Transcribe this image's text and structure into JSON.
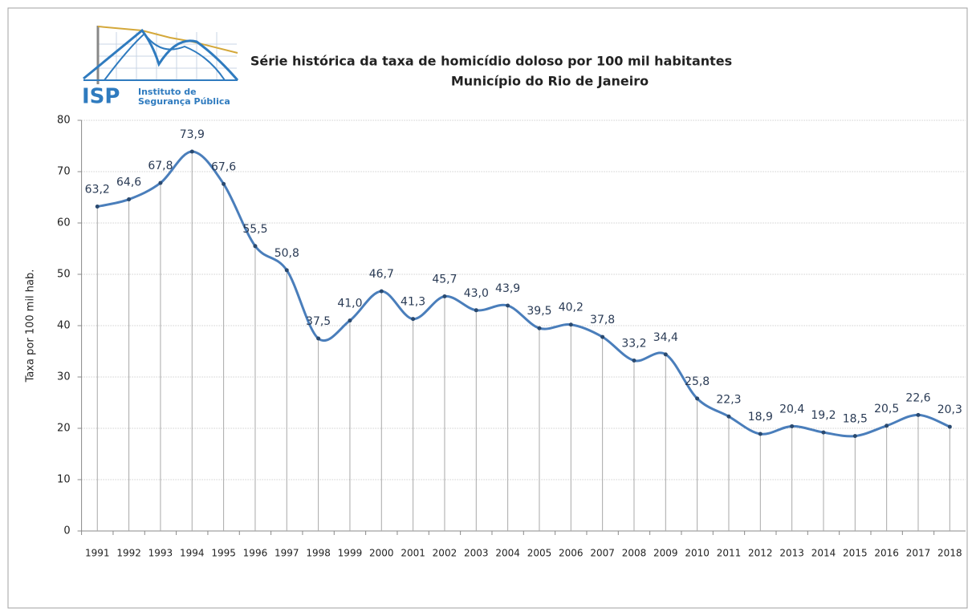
{
  "logo": {
    "acronym": "ISP",
    "line1": "Instituto de",
    "line2": "Segurança Pública"
  },
  "chart_data": {
    "type": "line",
    "title": "Série histórica da taxa de homicídio doloso por 100 mil habitantes",
    "subtitle": "Município do Rio de Janeiro",
    "y_label": "Taxa por 100 mil hab.",
    "categories": [
      "1991",
      "1992",
      "1993",
      "1994",
      "1995",
      "1996",
      "1997",
      "1998",
      "1999",
      "2000",
      "2001",
      "2002",
      "2003",
      "2004",
      "2005",
      "2006",
      "2007",
      "2008",
      "2009",
      "2010",
      "2011",
      "2012",
      "2013",
      "2014",
      "2015",
      "2016",
      "2017",
      "2018"
    ],
    "values": [
      63.2,
      64.6,
      67.8,
      73.9,
      67.6,
      55.5,
      50.8,
      37.5,
      41.0,
      46.7,
      41.3,
      45.7,
      43.0,
      43.9,
      39.5,
      40.2,
      37.8,
      33.2,
      34.4,
      25.8,
      22.3,
      18.9,
      20.4,
      19.2,
      18.5,
      20.5,
      22.6,
      20.3
    ],
    "value_labels": [
      "63,2",
      "64,6",
      "67,8",
      "73,9",
      "67,6",
      "55,5",
      "50,8",
      "37,5",
      "41,0",
      "46,7",
      "41,3",
      "45,7",
      "43,0",
      "43,9",
      "39,5",
      "40,2",
      "37,8",
      "33,2",
      "34,4",
      "25,8",
      "22,3",
      "18,9",
      "20,4",
      "19,2",
      "18,5",
      "20,5",
      "22,6",
      "20,3"
    ],
    "color": "#4a7ebb",
    "ylim": [
      0,
      80
    ],
    "yticks": [
      0,
      10,
      20,
      30,
      40,
      50,
      60,
      70,
      80
    ],
    "grid": true
  }
}
